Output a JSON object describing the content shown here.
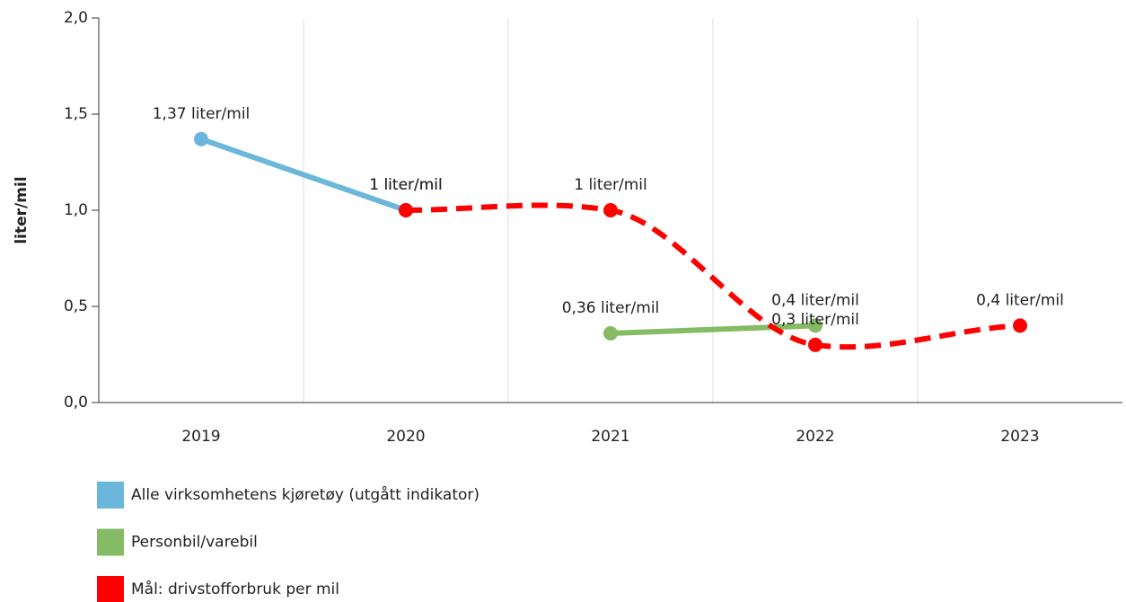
{
  "chart_data": {
    "type": "line",
    "y_label": "liter/mil",
    "categories": [
      "2019",
      "2020",
      "2021",
      "2022",
      "2023"
    ],
    "series": [
      {
        "name": "Alle virksomhetens kjøretøy (utgått indikator)",
        "color": "#6bb7dc",
        "dashed": false,
        "smooth": false,
        "values": [
          1.37,
          1,
          null,
          null,
          null
        ],
        "value_labels": [
          "1,37 liter/mil",
          "1 liter/mil",
          null,
          null,
          null
        ]
      },
      {
        "name": "Personbil/varebil",
        "color": "#85bb65",
        "dashed": false,
        "smooth": false,
        "values": [
          null,
          null,
          0.36,
          0.4,
          null
        ],
        "value_labels": [
          null,
          null,
          "0,36 liter/mil",
          "0,4 liter/mil",
          null
        ]
      },
      {
        "name": "Mål: drivstofforbruk per mil",
        "color": "#ff0000",
        "dashed": true,
        "smooth": true,
        "values": [
          null,
          1,
          1,
          0.3,
          0.4
        ],
        "value_labels": [
          null,
          "1 liter/mil",
          "1 liter/mil",
          "0,3 liter/mil",
          "0,4 liter/mil"
        ]
      }
    ],
    "ylim": [
      0,
      2
    ],
    "yticks": [
      {
        "value": 0,
        "label": "0,0"
      },
      {
        "value": 0.5,
        "label": "0,5"
      },
      {
        "value": 1,
        "label": "1,0"
      },
      {
        "value": 1.5,
        "label": "1,5"
      },
      {
        "value": 2,
        "label": "2,0"
      }
    ],
    "grid": true,
    "legend": "bottom-left"
  }
}
